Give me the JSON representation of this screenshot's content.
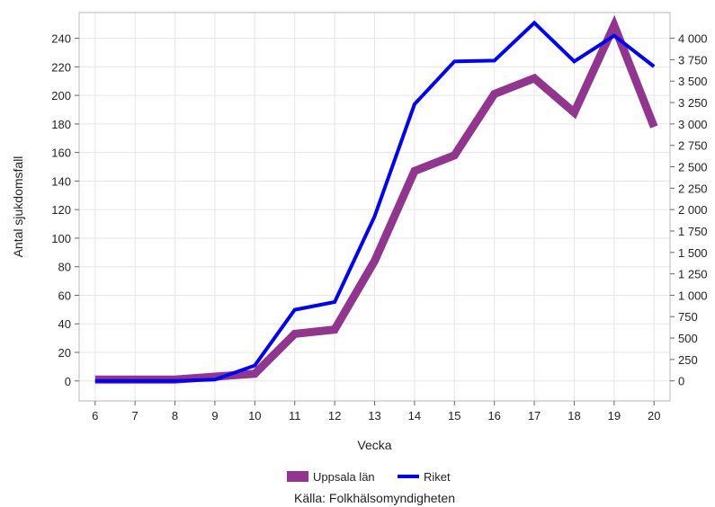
{
  "chart_data": {
    "type": "line",
    "xlabel": "Vecka",
    "ylabel": "Antal sjukdomsfall",
    "source": "Källa: Folkhälsomyndigheten",
    "x": [
      6,
      7,
      8,
      9,
      10,
      11,
      12,
      13,
      14,
      15,
      16,
      17,
      18,
      19,
      20
    ],
    "xlim": [
      5.6,
      20.4
    ],
    "y_left_ticks": [
      0,
      20,
      40,
      60,
      80,
      100,
      120,
      140,
      160,
      180,
      200,
      220,
      240
    ],
    "y_left_tick_labels": [
      "0",
      "20",
      "40",
      "60",
      "80",
      "100",
      "120",
      "140",
      "160",
      "180",
      "200",
      "220",
      "240"
    ],
    "ylim_left": [
      -14,
      258
    ],
    "y_right_ticks": [
      0,
      250,
      500,
      750,
      1000,
      1250,
      1500,
      1750,
      2000,
      2250,
      2500,
      2750,
      3000,
      3250,
      3500,
      3750,
      4000
    ],
    "y_right_tick_labels": [
      "0",
      "250",
      "500",
      "750",
      "1 000",
      "1 250",
      "1 500",
      "1 750",
      "2 000",
      "2 250",
      "2 500",
      "2 750",
      "3 000",
      "3 250",
      "3 500",
      "3 750",
      "4 000"
    ],
    "ylim_right": [
      -234,
      4300
    ],
    "grid": true,
    "legend_position": "bottom",
    "series": [
      {
        "name": "Uppsala län",
        "axis": "left",
        "color": "#92358f",
        "values": [
          1,
          1,
          1,
          3,
          5,
          33,
          36,
          84,
          147,
          158,
          201,
          212,
          188,
          249,
          178
        ]
      },
      {
        "name": "Riket",
        "axis": "right",
        "color": "#0000ff",
        "values": [
          0,
          0,
          0,
          15,
          180,
          830,
          920,
          1920,
          3230,
          3730,
          3740,
          4180,
          3730,
          4030,
          3670
        ]
      }
    ]
  }
}
